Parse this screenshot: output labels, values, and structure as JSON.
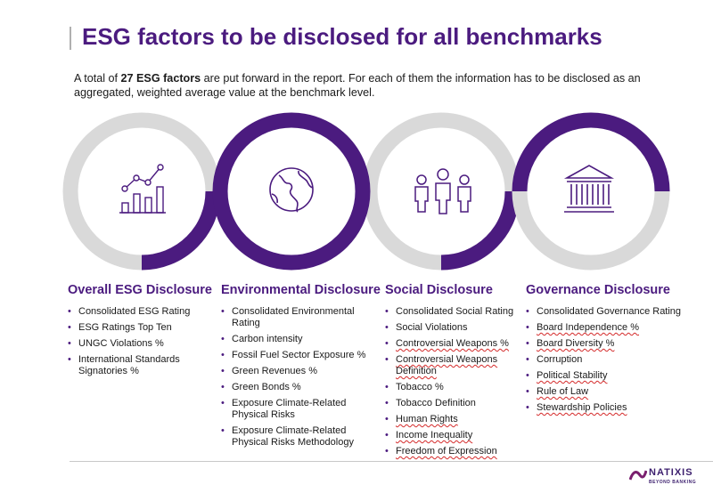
{
  "header": {
    "title": "ESG factors to be disclosed for all benchmarks",
    "intro_prefix": "A total of ",
    "intro_bold": "27 ESG factors",
    "intro_suffix": " are put forward in the report. For each of them the information has to be disclosed as an aggregated, weighted average value at the benchmark level."
  },
  "colors": {
    "accent": "#4b1b7f",
    "ring_grey": "#d9d9d9"
  },
  "columns": [
    {
      "icon": "bar-chart-growth-icon",
      "heading": "Overall ESG Disclosure",
      "items": [
        "Consolidated ESG Rating",
        "ESG Ratings Top Ten",
        "UNGC Violations %",
        "International Standards Signatories %"
      ]
    },
    {
      "icon": "globe-icon",
      "heading": "Environmental Disclosure",
      "items": [
        "Consolidated Environmental Rating",
        "Carbon intensity",
        "Fossil Fuel Sector Exposure %",
        "Green Revenues %",
        "Green Bonds %",
        "Exposure Climate-Related Physical Risks",
        "Exposure Climate-Related Physical Risks Methodology"
      ]
    },
    {
      "icon": "people-group-icon",
      "heading": "Social Disclosure",
      "items": [
        "Consolidated Social Rating",
        "Social Violations",
        "Controversial Weapons %",
        "Controversial Weapons Definition",
        "Tobacco %",
        "Tobacco Definition",
        "Human Rights",
        "Income Inequality",
        "Freedom of Expression"
      ]
    },
    {
      "icon": "institution-building-icon",
      "heading": "Governance Disclosure",
      "items": [
        "Consolidated Governance Rating",
        "Board Independence %",
        "Board Diversity %",
        "Corruption",
        "Political Stability",
        "Rule of Law",
        "Stewardship Policies"
      ]
    }
  ],
  "footer": {
    "logo_name": "NATIXIS",
    "logo_tagline": "BEYOND BANKING"
  }
}
